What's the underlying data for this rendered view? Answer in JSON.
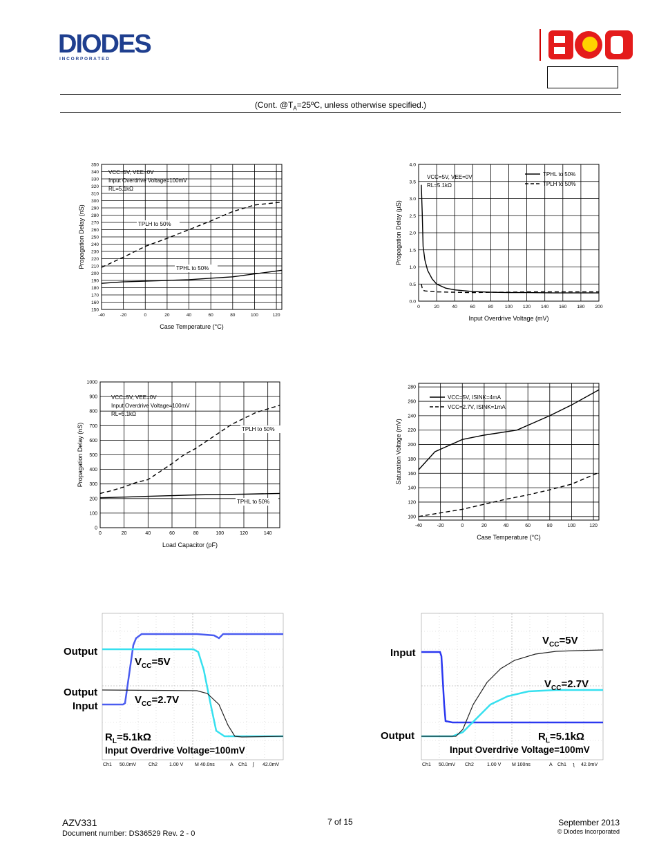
{
  "header": {
    "company_logo_text": "DIODES",
    "company_logo_sub": "I N C O R P O R A T E D",
    "partner_logo_text": "BCD",
    "condition_text_prefix": "(Cont. @T",
    "condition_text_sub": "A",
    "condition_text_suffix": "=25ºC, unless otherwise specified.)"
  },
  "chart_data": [
    {
      "type": "line",
      "xlabel": "Case Temperature (°C)",
      "ylabel": "Propagation Delay (nS)",
      "xlim": [
        -40,
        125
      ],
      "ylim": [
        150,
        350
      ],
      "xticks": [
        -40,
        -20,
        0,
        20,
        40,
        60,
        80,
        100,
        120
      ],
      "yticks": [
        150,
        160,
        170,
        180,
        190,
        200,
        210,
        220,
        230,
        240,
        250,
        260,
        270,
        280,
        290,
        300,
        310,
        320,
        330,
        340,
        350
      ],
      "annotations": [
        "VCC=5V, VEE=0V",
        "Input Overdrive Voltage=100mV",
        "RL=5.1kΩ"
      ],
      "series": [
        {
          "name": "TPLH to 50%",
          "style": "dashed",
          "x": [
            -40,
            -20,
            0,
            20,
            40,
            60,
            80,
            100,
            125
          ],
          "y": [
            208,
            222,
            237,
            248,
            260,
            272,
            285,
            294,
            298
          ]
        },
        {
          "name": "TPHL to 50%",
          "style": "solid",
          "x": [
            -40,
            -20,
            0,
            20,
            40,
            60,
            80,
            100,
            125
          ],
          "y": [
            186,
            188,
            189,
            190,
            191,
            193,
            195,
            199,
            204
          ]
        }
      ]
    },
    {
      "type": "line",
      "xlabel": "Input Overdrive Voltage (mV)",
      "ylabel": "Propagation Delay (µS)",
      "xlim": [
        0,
        200
      ],
      "ylim": [
        0,
        4.0
      ],
      "xticks": [
        0,
        20,
        40,
        60,
        80,
        100,
        120,
        140,
        160,
        180,
        200
      ],
      "yticks": [
        "0.0",
        "0.5",
        "1.0",
        "1.5",
        "2.0",
        "2.5",
        "3.0",
        "3.5",
        "4.0"
      ],
      "annotations": [
        "VCC=5V, VEE=0V",
        "RL=5.1kΩ"
      ],
      "series": [
        {
          "name": "TPHL to 50%",
          "style": "solid",
          "x": [
            3,
            4,
            5,
            7,
            10,
            15,
            20,
            30,
            40,
            60,
            80,
            100,
            120,
            150,
            200
          ],
          "y": [
            3.4,
            2.6,
            1.6,
            1.2,
            0.9,
            0.65,
            0.5,
            0.38,
            0.33,
            0.28,
            0.26,
            0.25,
            0.25,
            0.24,
            0.24
          ]
        },
        {
          "name": "TPLH to 50%",
          "style": "dashed",
          "x": [
            3,
            4,
            5,
            7,
            10,
            20,
            40,
            60,
            80,
            100,
            120,
            150,
            200
          ],
          "y": [
            0.5,
            0.38,
            0.32,
            0.3,
            0.29,
            0.27,
            0.26,
            0.25,
            0.26,
            0.26,
            0.27,
            0.27,
            0.27
          ]
        }
      ]
    },
    {
      "type": "line",
      "xlabel": "Load Capacitor (pF)",
      "ylabel": "Propagation Delay (nS)",
      "xlim": [
        0,
        150
      ],
      "ylim": [
        0,
        1000
      ],
      "xticks": [
        0,
        20,
        40,
        60,
        80,
        100,
        120,
        140
      ],
      "yticks": [
        0,
        100,
        200,
        300,
        400,
        500,
        600,
        700,
        800,
        900,
        1000
      ],
      "annotations": [
        "VCC=5V, VEE=0V",
        "Input Overdrive Voltage=100mV",
        "RL=5.1kΩ"
      ],
      "series": [
        {
          "name": "TPLH to 50%",
          "style": "dashed",
          "x": [
            0,
            10,
            20,
            30,
            40,
            50,
            60,
            70,
            80,
            90,
            100,
            110,
            120,
            130,
            150
          ],
          "y": [
            235,
            255,
            280,
            310,
            330,
            385,
            440,
            500,
            545,
            600,
            655,
            710,
            750,
            790,
            840
          ]
        },
        {
          "name": "TPHL to 50%",
          "style": "solid",
          "x": [
            0,
            20,
            40,
            60,
            80,
            100,
            120,
            150
          ],
          "y": [
            205,
            210,
            215,
            220,
            225,
            228,
            230,
            235
          ]
        }
      ]
    },
    {
      "type": "line",
      "xlabel": "Case Temperature (°C)",
      "ylabel": "Saturation Voltage (mV)",
      "xlim": [
        -40,
        125
      ],
      "ylim": [
        95,
        285
      ],
      "xticks": [
        -40,
        -20,
        0,
        20,
        40,
        60,
        80,
        100,
        120
      ],
      "yticks": [
        100,
        120,
        140,
        160,
        180,
        200,
        220,
        240,
        260,
        280
      ],
      "series": [
        {
          "name": "VCC=5V, ISINK=4mA",
          "style": "solid",
          "x": [
            -40,
            -25,
            0,
            20,
            50,
            80,
            100,
            125
          ],
          "y": [
            165,
            190,
            207,
            213,
            220,
            240,
            255,
            276
          ]
        },
        {
          "name": "VCC=2.7V, ISINK=1mA",
          "style": "dashed",
          "x": [
            -40,
            -20,
            0,
            20,
            40,
            60,
            80,
            100,
            125
          ],
          "y": [
            100,
            105,
            110,
            117,
            124,
            130,
            137,
            145,
            161
          ]
        }
      ]
    }
  ],
  "scope1": {
    "labels": {
      "output1": "Output",
      "output2": "Output",
      "input": "Input"
    },
    "vcc1_main": "V",
    "vcc1_sub": "CC",
    "vcc1_val": "=5V",
    "vcc2_main": "V",
    "vcc2_sub": "CC",
    "vcc2_val": "=2.7V",
    "rl_main": "R",
    "rl_sub": "L",
    "rl_val": "=5.1kΩ",
    "overdrive": "Input Overdrive Voltage=100mV",
    "status": [
      "Ch1",
      "50.0mV",
      "Ch2",
      "1.00 V",
      "M 40.0ns",
      "A",
      "Ch1",
      "ʃ",
      "42.0mV"
    ]
  },
  "scope2": {
    "labels": {
      "input": "Input",
      "output": "Output"
    },
    "vcc1_main": "V",
    "vcc1_sub": "CC",
    "vcc1_val": "=5V",
    "vcc2_main": "V",
    "vcc2_sub": "CC",
    "vcc2_val": "=2.7V",
    "rl_main": "R",
    "rl_sub": "L",
    "rl_val": "=5.1kΩ",
    "overdrive": "Input Overdrive Voltage=100mV",
    "status": [
      "Ch1",
      "50.0mV",
      "Ch2",
      "1.00 V",
      "M 100ns",
      "A",
      "Ch1",
      "ʅ",
      "42.0mV"
    ]
  },
  "footer": {
    "part": "AZV331",
    "doc": "Document number: DS36529  Rev. 2 - 0",
    "page": "7 of 15",
    "date": "September 2013",
    "copyright": "© Diodes Incorporated"
  }
}
